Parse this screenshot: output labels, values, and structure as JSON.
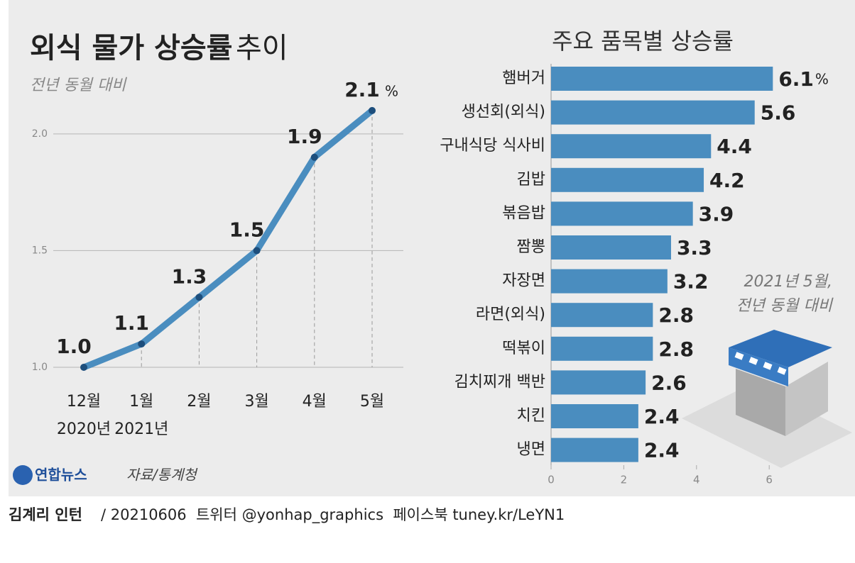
{
  "chart_data": [
    {
      "type": "line",
      "title": "외식 물가 상승률",
      "title_suffix": "추이",
      "subtitle": "전년 동월 대비",
      "categories": [
        "12월",
        "1월",
        "2월",
        "3월",
        "4월",
        "5월"
      ],
      "category_sublabels": [
        "2020년",
        "2021년",
        null,
        null,
        null,
        null
      ],
      "values": [
        1.0,
        1.1,
        1.3,
        1.5,
        1.9,
        2.1
      ],
      "value_labels": [
        "1.0",
        "1.1",
        "1.3",
        "1.5",
        "1.9",
        "2.1"
      ],
      "unit": "%",
      "color": "#4a8dbf",
      "ylim": [
        1.0,
        2.2
      ],
      "yticks": [
        {
          "value": 1.0,
          "label": "1.0"
        },
        {
          "value": 1.5,
          "label": "1.5"
        },
        {
          "value": 2.0,
          "label": "2.0"
        }
      ],
      "grid": true
    },
    {
      "type": "bar",
      "orientation": "horizontal",
      "title": "주요 품목별 상승률",
      "categories": [
        "햄버거",
        "생선회(외식)",
        "구내식당 식사비",
        "김밥",
        "볶음밥",
        "짬뽕",
        "자장면",
        "라면(외식)",
        "떡볶이",
        "김치찌개 백반",
        "치킨",
        "냉면"
      ],
      "values": [
        6.1,
        5.6,
        4.4,
        4.2,
        3.9,
        3.3,
        3.2,
        2.8,
        2.8,
        2.6,
        2.4,
        2.4
      ],
      "unit": "%",
      "color": "#4a8dbf",
      "xlim": [
        0,
        7
      ],
      "xticks": [
        0,
        2,
        4,
        6
      ],
      "annotation": [
        "2021년 5월,",
        "전년 동월 대비"
      ]
    }
  ],
  "footer": {
    "logo": "연합뉴스",
    "source": "자료/통계청",
    "credit_author": "김계리 인턴",
    "credit_rest": "/ 20210606  트위터 @yonhap_graphics  페이스북 tuney.kr/LeYN1"
  }
}
